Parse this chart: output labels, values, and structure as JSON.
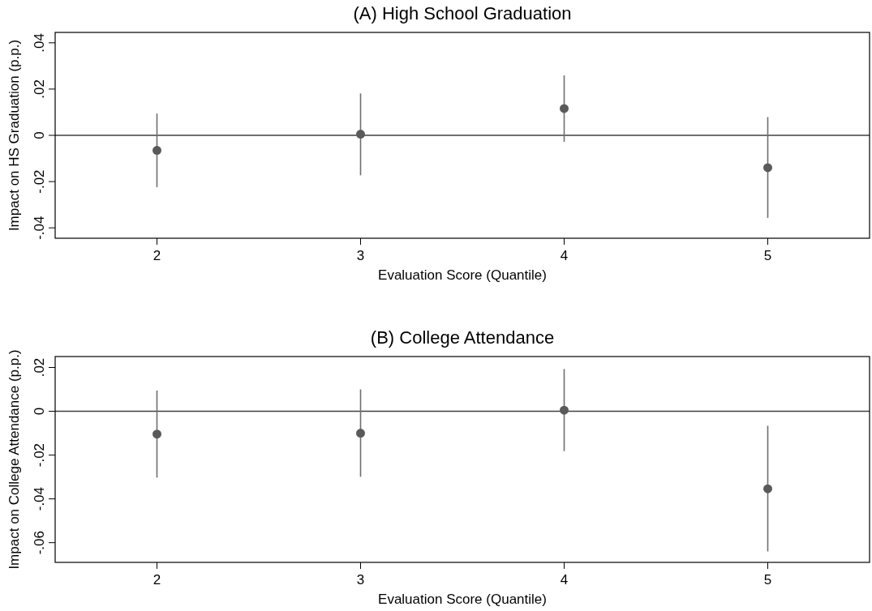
{
  "chart_data": [
    {
      "type": "scatter",
      "title": "(A) High School Graduation",
      "xlabel": "Evaluation Score (Quantile)",
      "ylabel": "Impact on HS Graduation (p.p.)",
      "x": [
        2,
        3,
        4,
        5
      ],
      "marker": "circle",
      "series": [
        {
          "color": "#5a5a5a",
          "values": [
            -0.0065,
            0.0005,
            0.0116,
            -0.014
          ],
          "errors": [
            [
              -0.0224,
              0.0094
            ],
            [
              -0.0173,
              0.0181
            ],
            [
              -0.0028,
              0.0259
            ],
            [
              -0.0357,
              0.0079
            ]
          ]
        }
      ],
      "xlim": [
        1.5,
        5.5
      ],
      "xticks": [
        2,
        3,
        4,
        5
      ],
      "ylim": [
        -0.0445,
        0.0445
      ],
      "yticks": [
        {
          "value": -0.04,
          "label": "-.04"
        },
        {
          "value": -0.02,
          "label": "-.02"
        },
        0,
        {
          "value": 0.02,
          "label": ".02"
        },
        {
          "value": 0.04,
          "label": ".04"
        }
      ],
      "ref_lines": [
        {
          "axis": "y",
          "value": 0,
          "color": "#404040"
        }
      ]
    },
    {
      "type": "scatter",
      "title": "(B) College Attendance",
      "xlabel": "Evaluation Score (Quantile)",
      "ylabel": "Impact on College Attendance (p.p.)",
      "x": [
        2,
        3,
        4,
        5
      ],
      "marker": "circle",
      "series": [
        {
          "color": "#5a5a5a",
          "values": [
            -0.0104,
            -0.01,
            0.0005,
            -0.0354
          ],
          "errors": [
            [
              -0.0303,
              0.0095
            ],
            [
              -0.0299,
              0.01
            ],
            [
              -0.0182,
              0.0193
            ],
            [
              -0.064,
              -0.0066
            ]
          ]
        }
      ],
      "xlim": [
        1.5,
        5.5
      ],
      "xticks": [
        2,
        3,
        4,
        5
      ],
      "ylim": [
        -0.069,
        0.025
      ],
      "yticks": [
        {
          "value": -0.06,
          "label": "-.06"
        },
        {
          "value": -0.04,
          "label": "-.04"
        },
        {
          "value": -0.02,
          "label": "-.02"
        },
        0,
        {
          "value": 0.02,
          "label": ".02"
        }
      ],
      "ref_lines": [
        {
          "axis": "y",
          "value": 0,
          "color": "#404040"
        }
      ]
    }
  ]
}
